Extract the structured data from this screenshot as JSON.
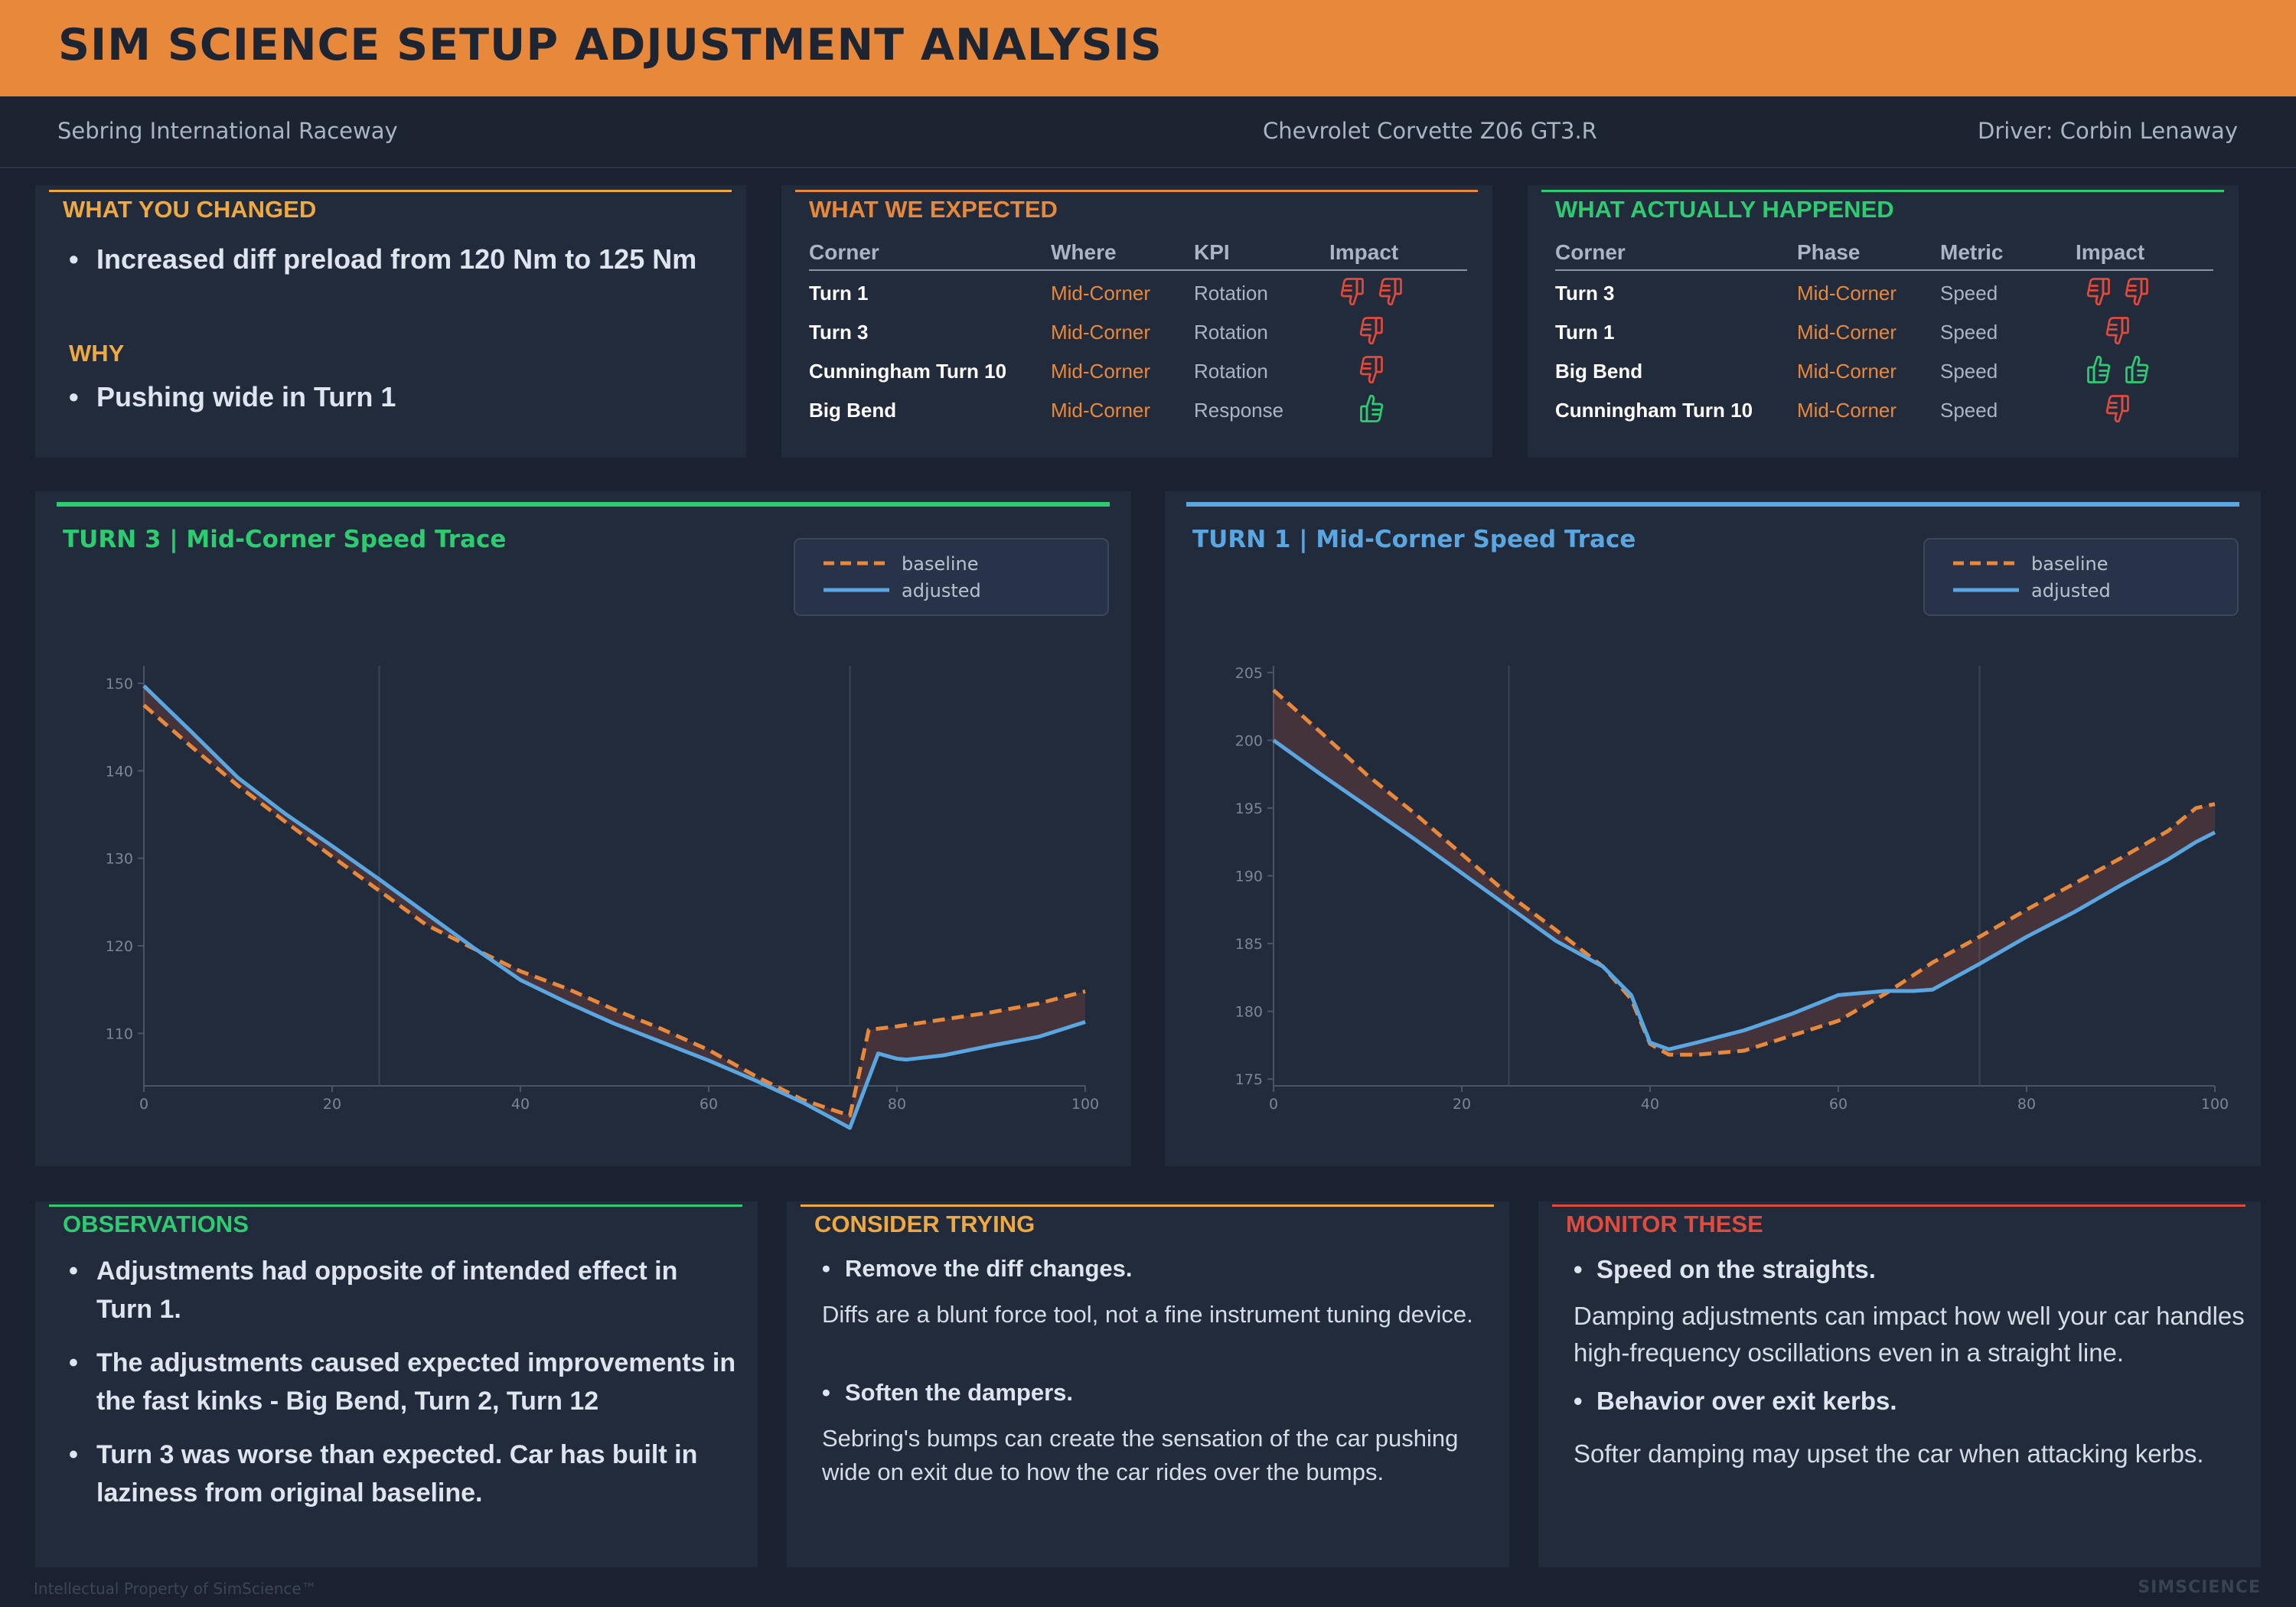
{
  "header": {
    "title": "SIM SCIENCE SETUP ADJUSTMENT ANALYSIS"
  },
  "subheader": {
    "track": "Sebring International Raceway",
    "car": "Chevrolet Corvette Z06 GT3.R",
    "driver": "Driver: Corbin Lenaway"
  },
  "changed": {
    "title": "WHAT YOU CHANGED",
    "item": "Increased diff preload from 120 Nm to 125 Nm",
    "why_title": "WHY",
    "why": "Pushing wide in Turn 1"
  },
  "expected": {
    "title": "WHAT WE EXPECTED",
    "headers": [
      "Corner",
      "Where",
      "KPI",
      "Impact"
    ],
    "rows": [
      {
        "corner": "Turn 1",
        "where": "Mid-Corner",
        "kpi": "Rotation",
        "impact": "down",
        "count": 2
      },
      {
        "corner": "Turn 3",
        "where": "Mid-Corner",
        "kpi": "Rotation",
        "impact": "down",
        "count": 1
      },
      {
        "corner": "Cunningham Turn 10",
        "where": "Mid-Corner",
        "kpi": "Rotation",
        "impact": "down",
        "count": 1
      },
      {
        "corner": "Big Bend",
        "where": "Mid-Corner",
        "kpi": "Response",
        "impact": "up",
        "count": 1
      }
    ]
  },
  "happened": {
    "title": "WHAT ACTUALLY HAPPENED",
    "headers": [
      "Corner",
      "Phase",
      "Metric",
      "Impact"
    ],
    "rows": [
      {
        "corner": "Turn 3",
        "where": "Mid-Corner",
        "kpi": "Speed",
        "impact": "down",
        "count": 2
      },
      {
        "corner": "Turn 1",
        "where": "Mid-Corner",
        "kpi": "Speed",
        "impact": "down",
        "count": 1
      },
      {
        "corner": "Big Bend",
        "where": "Mid-Corner",
        "kpi": "Speed",
        "impact": "up",
        "count": 2
      },
      {
        "corner": "Cunningham Turn 10",
        "where": "Mid-Corner",
        "kpi": "Speed",
        "impact": "down",
        "count": 1
      }
    ]
  },
  "colors": {
    "accent": "#e8883a",
    "yellow": "#f0a93f",
    "green": "#2ecc71",
    "blue": "#5aa6e0",
    "red": "#e04b3b"
  },
  "chart_data": [
    {
      "type": "line",
      "title": "TURN 3  |  Mid-Corner Speed Trace",
      "xlim": [
        0,
        100
      ],
      "ylim": [
        104,
        152
      ],
      "xticks": [
        "0",
        "20",
        "40",
        "60",
        "80",
        "100"
      ],
      "yticks": [
        "110",
        "120",
        "130",
        "140",
        "150"
      ],
      "vlines": [
        25,
        75
      ],
      "legend": "top-right",
      "series": [
        {
          "name": "baseline",
          "style": "dashed",
          "color": "#e8883a",
          "x": [
            0,
            5,
            10,
            15,
            20,
            25,
            30,
            35,
            40,
            45,
            50,
            55,
            60,
            65,
            70,
            75,
            77,
            80,
            85,
            90,
            95,
            100
          ],
          "y": [
            147.5,
            142.8,
            138.3,
            134.2,
            130.2,
            126.3,
            122.4,
            119.7,
            117.1,
            115.1,
            112.7,
            110.5,
            108.1,
            105.1,
            102.4,
            100.6,
            110.4,
            110.8,
            111.6,
            112.4,
            113.4,
            114.8
          ]
        },
        {
          "name": "adjusted",
          "style": "solid",
          "color": "#5aa6e0",
          "x": [
            0,
            5,
            10,
            15,
            20,
            25,
            30,
            35,
            40,
            45,
            50,
            55,
            60,
            65,
            70,
            75,
            78,
            80,
            81,
            85,
            90,
            95,
            100
          ],
          "y": [
            149.7,
            144.5,
            139.2,
            135.1,
            131.4,
            127.6,
            123.7,
            119.8,
            116.1,
            113.5,
            111.1,
            109.0,
            106.9,
            104.6,
            102.1,
            99.2,
            107.7,
            107.1,
            107.0,
            107.5,
            108.6,
            109.6,
            111.3
          ]
        }
      ]
    },
    {
      "type": "line",
      "title": "TURN 1  |  Mid-Corner Speed Trace",
      "xlim": [
        0,
        100
      ],
      "ylim": [
        174.5,
        205.5
      ],
      "xticks": [
        "0",
        "20",
        "40",
        "60",
        "80",
        "100"
      ],
      "yticks": [
        "175",
        "180",
        "185",
        "190",
        "195",
        "200",
        "205"
      ],
      "vlines": [
        25,
        75
      ],
      "legend": "top-right",
      "series": [
        {
          "name": "baseline",
          "style": "dashed",
          "color": "#e8883a",
          "x": [
            0,
            5,
            10,
            15,
            20,
            25,
            30,
            35,
            38,
            40,
            42,
            45,
            50,
            55,
            60,
            65,
            70,
            75,
            80,
            85,
            90,
            95,
            98,
            100
          ],
          "y": [
            203.7,
            200.6,
            197.4,
            194.6,
            191.6,
            188.6,
            186.0,
            183.3,
            180.9,
            177.6,
            176.8,
            176.8,
            177.1,
            178.2,
            179.3,
            181.3,
            183.6,
            185.5,
            187.5,
            189.4,
            191.3,
            193.3,
            195.0,
            195.3
          ]
        },
        {
          "name": "adjusted",
          "style": "solid",
          "color": "#5aa6e0",
          "x": [
            0,
            5,
            10,
            15,
            20,
            25,
            30,
            35,
            38,
            40,
            42,
            45,
            50,
            55,
            60,
            65,
            68,
            70,
            75,
            80,
            85,
            90,
            95,
            98,
            100
          ],
          "y": [
            200.0,
            197.5,
            195.1,
            192.7,
            190.2,
            187.7,
            185.2,
            183.3,
            181.2,
            177.7,
            177.2,
            177.7,
            178.6,
            179.8,
            181.2,
            181.5,
            181.5,
            181.6,
            183.5,
            185.5,
            187.3,
            189.3,
            191.2,
            192.5,
            193.2
          ]
        }
      ]
    }
  ],
  "legend": {
    "baseline": "baseline",
    "adjusted": "adjusted"
  },
  "observations": {
    "title": "OBSERVATIONS",
    "items": [
      "Adjustments had opposite of intended effect in Turn 1.",
      "The adjustments caused expected improvements in the fast kinks - Big Bend, Turn 2, Turn 12",
      "Turn 3 was worse than expected. Car has built in laziness from original baseline."
    ]
  },
  "consider": {
    "title": "CONSIDER TRYING",
    "items": [
      {
        "head": "Remove the diff changes.",
        "body": "Diffs are a blunt force tool, not a fine instrument tuning device."
      },
      {
        "head": "Soften the dampers.",
        "body": "Sebring's bumps can create the sensation of the car pushing wide on exit due to how the car rides over the bumps."
      }
    ]
  },
  "monitor": {
    "title": "MONITOR THESE",
    "items": [
      {
        "head": "Speed on the straights.",
        "body": "Damping adjustments can impact how well your car handles high-frequency oscillations even in a straight line."
      },
      {
        "head": "Behavior over exit kerbs.",
        "body": "Softer damping may upset the car when attacking kerbs."
      }
    ]
  },
  "footer": {
    "left": "Intellectual Property of SimScience™",
    "right": "SIMSCIENCE"
  }
}
